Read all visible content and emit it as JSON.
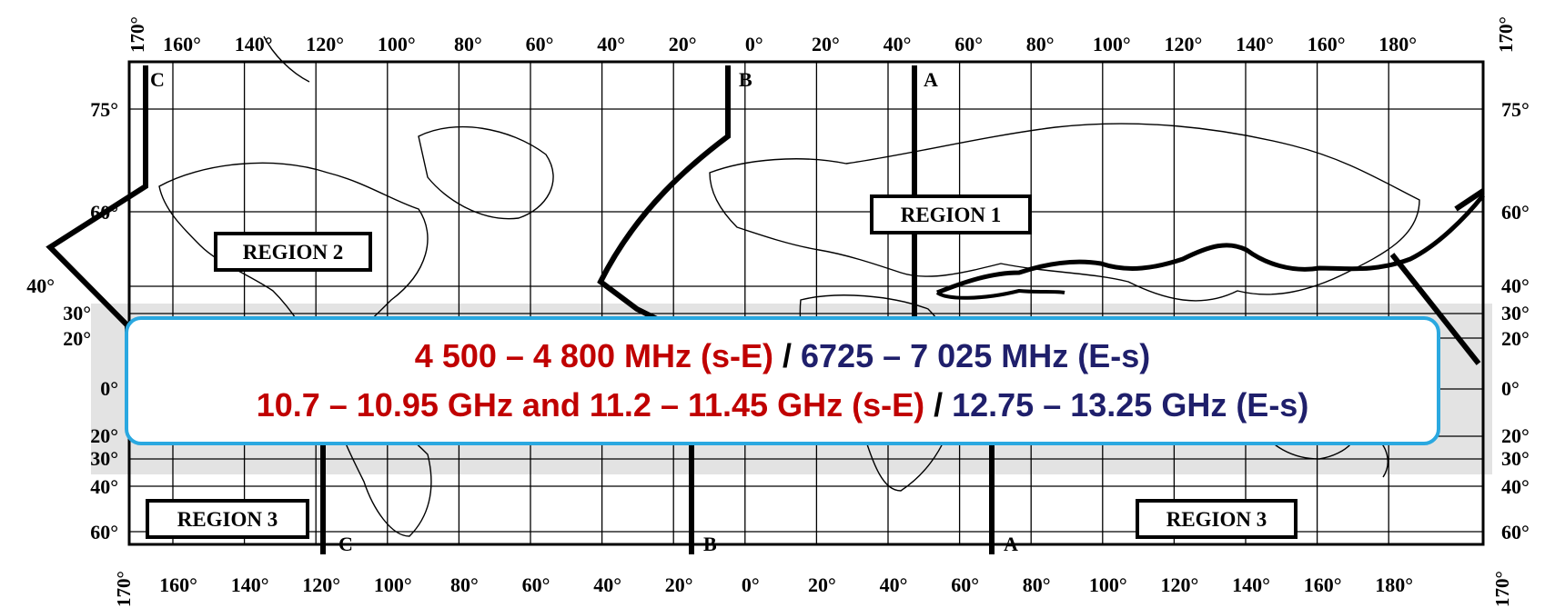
{
  "map": {
    "top_longitudes": [
      "160°",
      "140°",
      "120°",
      "100°",
      "80°",
      "60°",
      "40°",
      "20°",
      "0°",
      "20°",
      "40°",
      "60°",
      "80°",
      "100°",
      "120°",
      "140°",
      "160°",
      "180°"
    ],
    "bottom_longitudes": [
      "160°",
      "140°",
      "120°",
      "100°",
      "80°",
      "60°",
      "40°",
      "20°",
      "0°",
      "20°",
      "40°",
      "60°",
      "80°",
      "100°",
      "120°",
      "140°",
      "160°",
      "180°"
    ],
    "corner_longitude": "170°",
    "left_latitudes": [
      "75°",
      "60°",
      "40°",
      "30°",
      "20°",
      "0°",
      "20°",
      "30°",
      "40°",
      "60°"
    ],
    "right_latitudes": [
      "75°",
      "60°",
      "40°",
      "30°",
      "20°",
      "0°",
      "20°",
      "30°",
      "40°",
      "60°"
    ],
    "regions": {
      "region1": "REGION 1",
      "region2": "REGION 2",
      "region3_left": "REGION 3",
      "region3_right": "REGION 3"
    },
    "boundary_lines": {
      "c_top": "C",
      "c_bottom": "C",
      "b_top": "B",
      "b_bottom": "B",
      "a_top": "A",
      "a_bottom": "A"
    }
  },
  "callout": {
    "line1": {
      "part1": "4 500 – 4 800 MHz (s-E)",
      "sep": " / ",
      "part2": "6725 – 7 025 MHz (E-s)"
    },
    "line2": {
      "part1": "10.7 – 10.95 GHz and 11.2 – 11.45 GHz (s-E)",
      "sep": " / ",
      "part2": "12.75 – 13.25 GHz (E-s)"
    }
  },
  "colors": {
    "downlink": "#c00000",
    "uplink": "#1f1f6b",
    "callout_border": "#2aa8e0",
    "band_shading": "#e3e3e3"
  }
}
